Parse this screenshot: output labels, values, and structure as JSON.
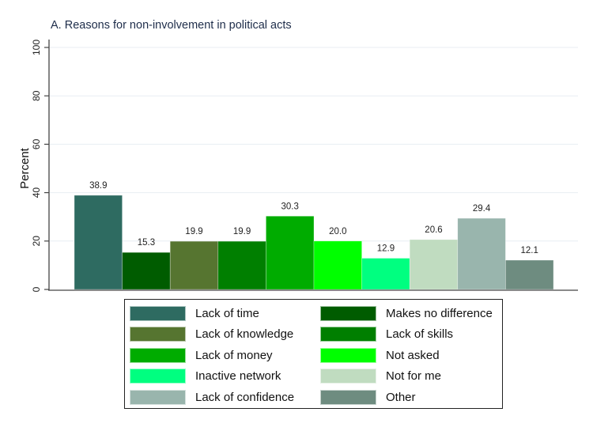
{
  "chart_data": {
    "type": "bar",
    "title": "A. Reasons for non-involvement in political acts",
    "xlabel": "",
    "ylabel": "Percent",
    "ylim": [
      0,
      100
    ],
    "yticks": [
      "0",
      "20",
      "40",
      "60",
      "80",
      "100"
    ],
    "grid": true,
    "legend_position": "bottom",
    "categories": [
      "Lack of time",
      "Makes no difference",
      "Lack of knowledge",
      "Lack of skills",
      "Lack of money",
      "Not asked",
      "Inactive network",
      "Not for me",
      "Lack of confidence",
      "Other"
    ],
    "values": [
      38.9,
      15.3,
      19.9,
      19.9,
      30.3,
      20.0,
      12.9,
      20.6,
      29.4,
      12.1
    ],
    "value_labels": [
      "38.9",
      "15.3",
      "19.9",
      "19.9",
      "30.3",
      "20.0",
      "12.9",
      "20.6",
      "29.4",
      "12.1"
    ],
    "colors": [
      "#2e6b61",
      "#005c00",
      "#567530",
      "#007f00",
      "#00ac00",
      "#00ff00",
      "#00ff80",
      "#c0dcc0",
      "#99b5ad",
      "#6e8c80"
    ]
  }
}
